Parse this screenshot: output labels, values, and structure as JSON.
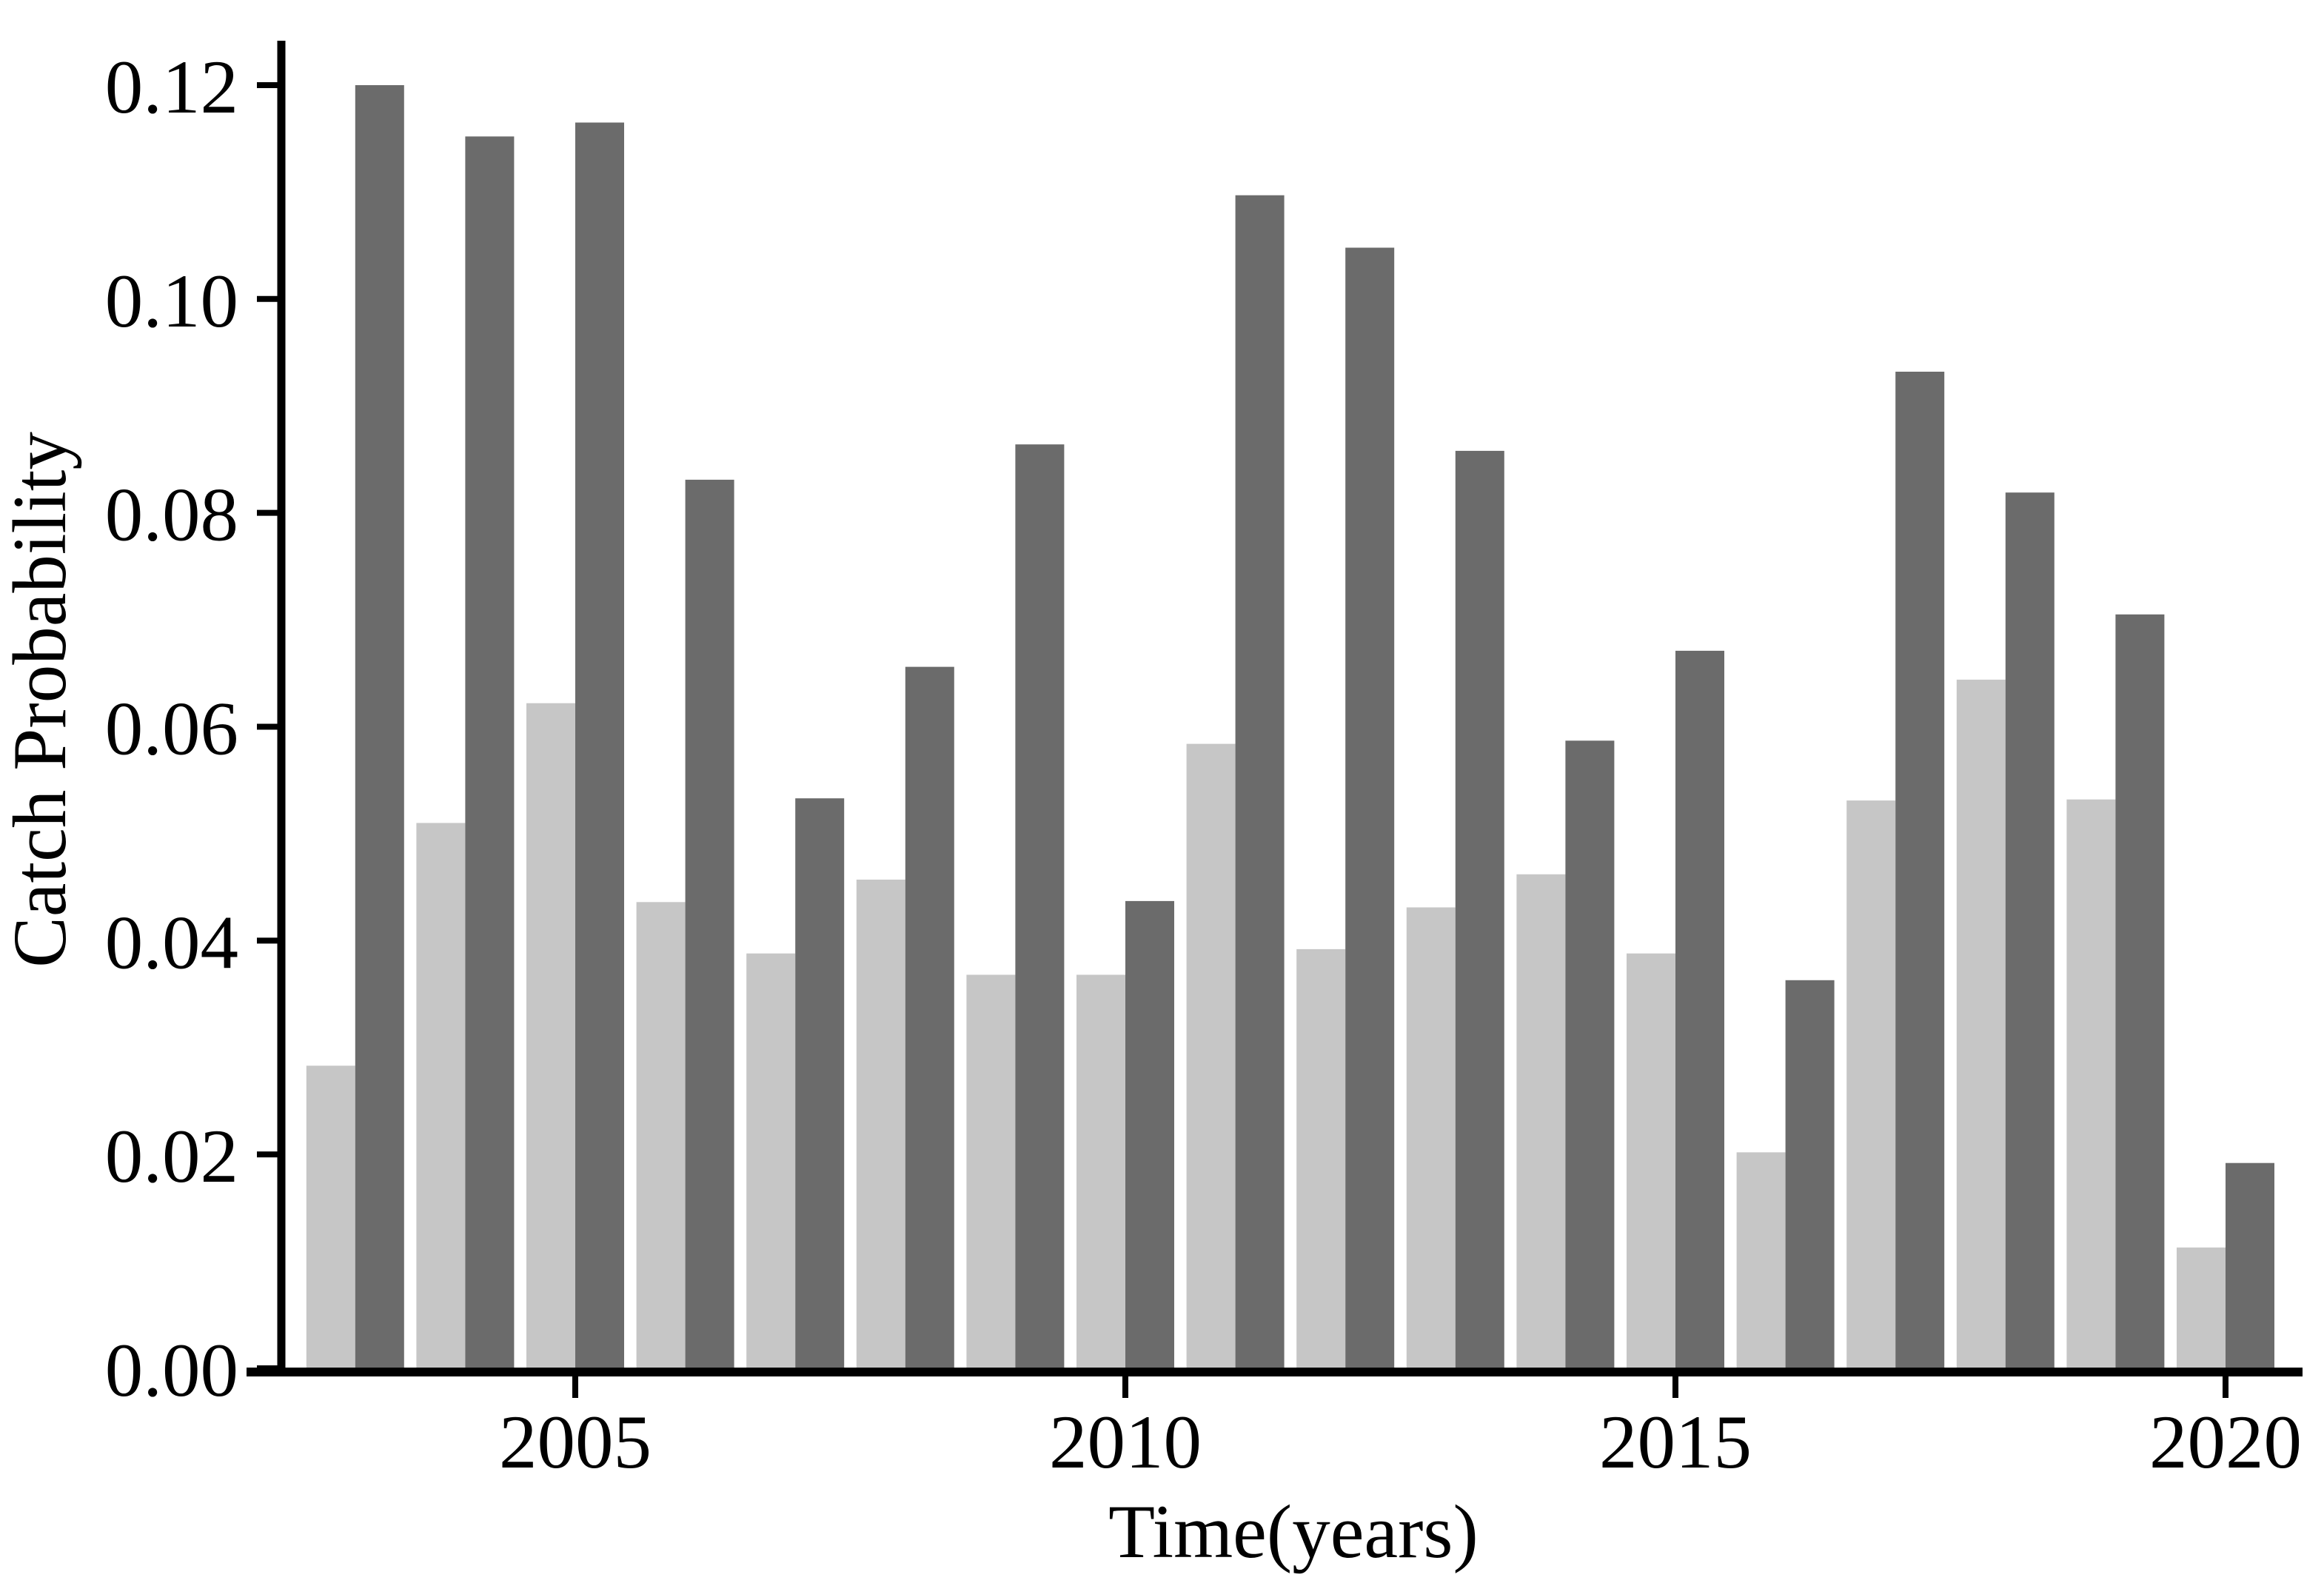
{
  "chart_data": {
    "type": "bar",
    "title": "",
    "xlabel": "Time(years)",
    "ylabel": "Catch Probability",
    "categories": [
      2003,
      2004,
      2005,
      2006,
      2007,
      2008,
      2009,
      2010,
      2011,
      2012,
      2013,
      2014,
      2015,
      2016,
      2017,
      2018,
      2019,
      2020
    ],
    "series": [
      {
        "name": "light-gray-bars",
        "color": "#c6c6c6",
        "values": [
          0.0283,
          0.051,
          0.0622,
          0.0436,
          0.0388,
          0.0457,
          0.0368,
          0.0368,
          0.0584,
          0.0392,
          0.0431,
          0.0462,
          0.0388,
          0.0202,
          0.0531,
          0.0644,
          0.0532,
          0.0113
        ]
      },
      {
        "name": "dark-gray-bars",
        "color": "#6b6b6b",
        "values": [
          0.12,
          0.1152,
          0.1165,
          0.0831,
          0.0533,
          0.0656,
          0.0864,
          0.0437,
          0.1097,
          0.1048,
          0.0858,
          0.0587,
          0.0671,
          0.0363,
          0.0932,
          0.0819,
          0.0705,
          0.0192
        ]
      }
    ],
    "ylim": [
      0.0,
      0.125
    ],
    "yticks": [
      0.0,
      0.02,
      0.04,
      0.06,
      0.08,
      0.1,
      0.12
    ],
    "ytick_labels": [
      "0.00",
      "0.02",
      "0.04",
      "0.06",
      "0.08",
      "0.10",
      "0.12"
    ],
    "xticks": [
      2005,
      2010,
      2015,
      2020
    ],
    "xtick_labels": [
      "2005",
      "2010",
      "2015",
      "2020"
    ],
    "grid": false,
    "legend": "none",
    "bar_layout": "paired; light bar left of year tick, dark bar right of year tick",
    "bar_width_years": 0.445
  },
  "colors": {
    "background": "#ffffff",
    "axis": "#000000",
    "light_bar": "#c6c6c6",
    "dark_bar": "#6b6b6b"
  }
}
